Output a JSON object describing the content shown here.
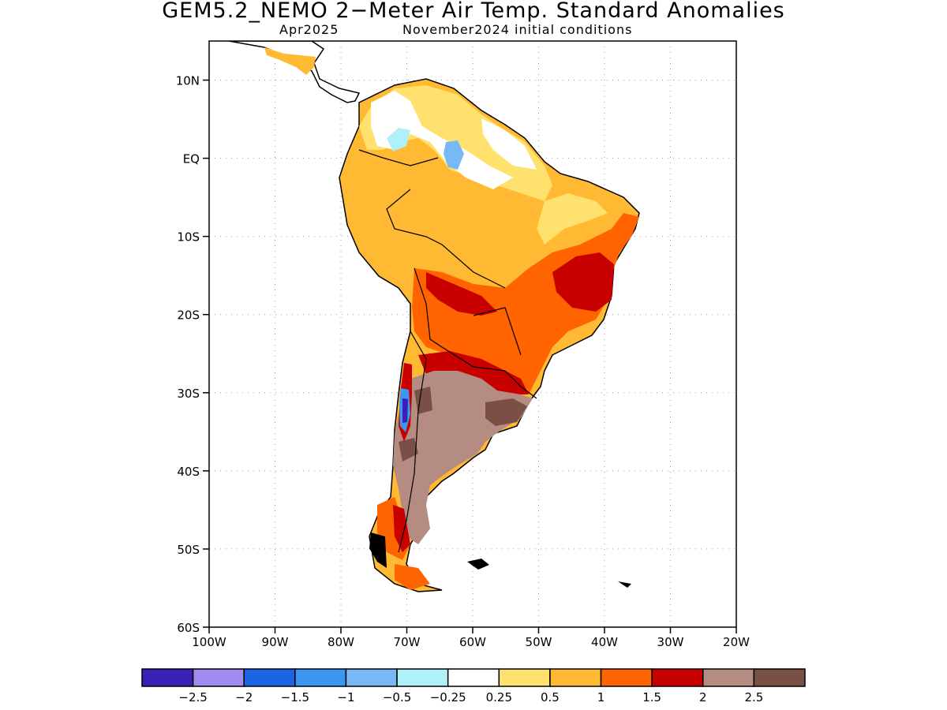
{
  "title": "GEM5.2_NEMO 2−Meter Air Temp. Standard Anomalies",
  "subtitle_left": "Apr2025",
  "subtitle_right": "November2024 initial conditions",
  "map": {
    "projection": "lat-lon",
    "lon_range": [
      -100,
      -20
    ],
    "lat_range": [
      -60,
      15
    ],
    "grid": true,
    "y_ticks": [
      "10N",
      "EQ",
      "10S",
      "20S",
      "30S",
      "40S",
      "50S",
      "60S"
    ],
    "x_ticks": [
      "100W",
      "90W",
      "80W",
      "70W",
      "60W",
      "50W",
      "40W",
      "30W",
      "20W"
    ],
    "anomaly_regions": [
      {
        "level": "0.5-1",
        "desc": "northern South America, Amazon"
      },
      {
        "level": "1-1.5",
        "desc": "southern Brazil, Paraguay"
      },
      {
        "level": "1.5-2",
        "desc": "eastern Brazil, northern Argentina"
      },
      {
        "level": "2-2.5",
        "desc": "central Argentina"
      },
      {
        "level": "-1 to -0.5",
        "desc": "central Chile, Venezuela interior"
      }
    ]
  },
  "colorbar": {
    "colors": [
      "#3a1fb8",
      "#a08cf0",
      "#1c64e6",
      "#3c96f0",
      "#78b9f5",
      "#b0f0f8",
      "#ffffff",
      "#ffe16e",
      "#ffb932",
      "#ff6400",
      "#c80000",
      "#b48c82",
      "#7a5046"
    ],
    "labels": [
      "−2.5",
      "−2",
      "−1.5",
      "−1",
      "−0.5",
      "−0.25",
      "0.25",
      "0.5",
      "1",
      "1.5",
      "2",
      "2.5"
    ]
  }
}
